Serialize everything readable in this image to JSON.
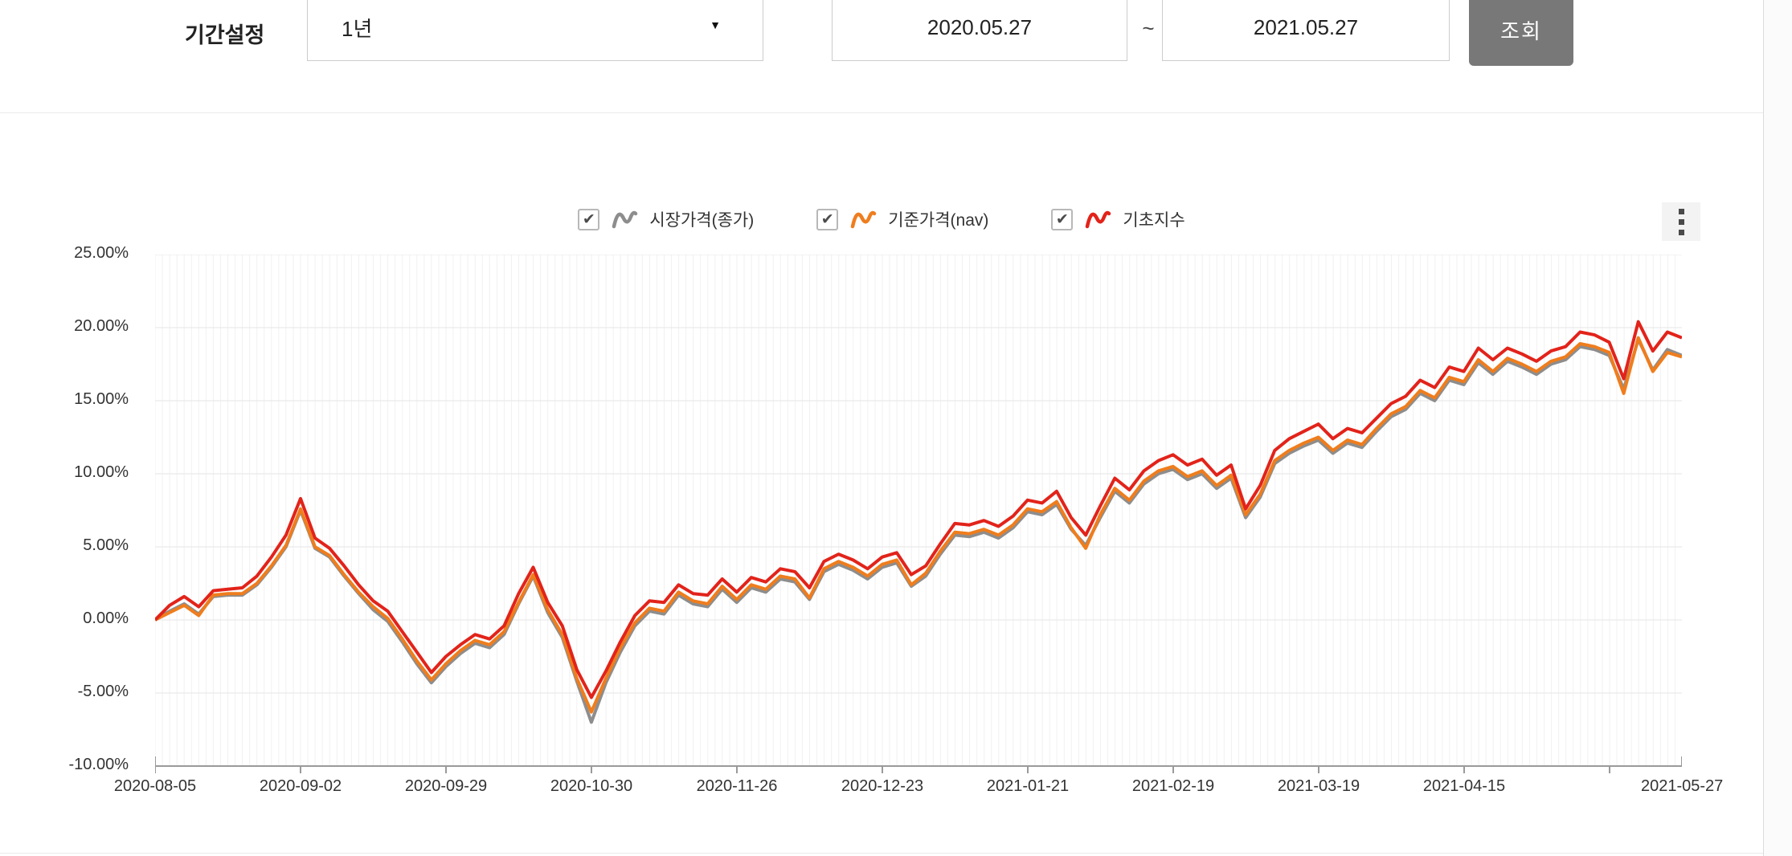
{
  "period_bar": {
    "label": "기간설정",
    "period_value": "1년",
    "dropdown_arrow": "▼",
    "date_from": "2020.05.27",
    "tilde": "~",
    "date_to": "2021.05.27",
    "search_label": "조회"
  },
  "legend": [
    {
      "label": "시장가격(종가)",
      "color": "#8d8d8d",
      "checked": true
    },
    {
      "label": "기준가격(nav)",
      "color": "#ef7d1d",
      "checked": true
    },
    {
      "label": "기초지수",
      "color": "#e2231a",
      "checked": true
    }
  ],
  "check_glyph": "✔",
  "menu_icon": "kebab-menu",
  "chart_data": {
    "type": "line",
    "title": "",
    "xlabel": "",
    "ylabel": "",
    "ylim": [
      -10,
      25
    ],
    "grid": "on",
    "legend_position": "top-center",
    "y_tick_labels": [
      "25.00%",
      "20.00%",
      "15.00%",
      "10.00%",
      "5.00%",
      "0.00%",
      "-5.00%",
      "-10.00%"
    ],
    "x_tick_labels": [
      "2020-08-05",
      "2020-09-02",
      "2020-09-29",
      "2020-10-30",
      "2020-11-26",
      "2020-12-23",
      "2021-01-21",
      "2021-02-19",
      "2021-03-19",
      "2021-04-15",
      "2021-05-27"
    ],
    "x_last_label_clipped": true,
    "series": [
      {
        "name": "시장가격(종가)",
        "color": "#8d8d8d",
        "values": [
          0.0,
          0.6,
          1.1,
          0.4,
          1.6,
          1.7,
          1.7,
          2.4,
          3.6,
          5.0,
          7.5,
          4.9,
          4.3,
          3.0,
          1.8,
          0.7,
          -0.1,
          -1.5,
          -3.0,
          -4.3,
          -3.2,
          -2.3,
          -1.6,
          -1.9,
          -1.0,
          1.1,
          3.0,
          0.5,
          -1.2,
          -4.2,
          -7.0,
          -4.3,
          -2.2,
          -0.4,
          0.6,
          0.4,
          1.7,
          1.1,
          0.9,
          2.1,
          1.2,
          2.2,
          1.9,
          2.8,
          2.6,
          1.4,
          3.3,
          3.8,
          3.4,
          2.8,
          3.6,
          3.9,
          2.3,
          3.0,
          4.5,
          5.8,
          5.7,
          6.0,
          5.6,
          6.3,
          7.4,
          7.2,
          7.9,
          6.2,
          5.1,
          7.0,
          8.8,
          8.0,
          9.3,
          10.0,
          10.3,
          9.6,
          10.0,
          9.0,
          9.7,
          7.0,
          8.4,
          10.7,
          11.4,
          11.9,
          12.3,
          11.4,
          12.1,
          11.8,
          12.9,
          13.9,
          14.4,
          15.5,
          15.0,
          16.4,
          16.1,
          17.6,
          16.8,
          17.7,
          17.3,
          16.8,
          17.5,
          17.8,
          18.7,
          18.5,
          18.1,
          15.8,
          19.2,
          17.1,
          18.5,
          18.1
        ]
      },
      {
        "name": "기준가격(nav)",
        "color": "#ef7d1d",
        "values": [
          0.0,
          0.5,
          1.0,
          0.3,
          1.7,
          1.8,
          1.8,
          2.5,
          3.7,
          5.1,
          7.6,
          5.0,
          4.4,
          3.1,
          1.9,
          0.9,
          0.1,
          -1.3,
          -2.8,
          -4.1,
          -3.0,
          -2.1,
          -1.4,
          -1.7,
          -0.8,
          1.2,
          3.1,
          0.7,
          -1.0,
          -4.0,
          -6.3,
          -4.0,
          -1.9,
          -0.2,
          0.8,
          0.6,
          1.9,
          1.3,
          1.1,
          2.3,
          1.4,
          2.4,
          2.1,
          3.0,
          2.8,
          1.5,
          3.5,
          4.0,
          3.6,
          3.0,
          3.8,
          4.1,
          2.4,
          3.2,
          4.7,
          6.0,
          5.9,
          6.2,
          5.8,
          6.5,
          7.6,
          7.4,
          8.1,
          6.3,
          4.9,
          7.2,
          9.0,
          8.2,
          9.5,
          10.2,
          10.5,
          9.8,
          10.2,
          9.2,
          9.9,
          7.2,
          8.6,
          10.9,
          11.6,
          12.1,
          12.5,
          11.6,
          12.3,
          12.0,
          13.1,
          14.1,
          14.6,
          15.7,
          15.2,
          16.6,
          16.3,
          17.8,
          17.0,
          17.9,
          17.5,
          17.0,
          17.7,
          18.0,
          18.9,
          18.7,
          18.3,
          15.5,
          19.3,
          17.0,
          18.3,
          18.0
        ]
      },
      {
        "name": "기초지수",
        "color": "#e2231a",
        "values": [
          0.0,
          1.0,
          1.6,
          0.9,
          2.0,
          2.1,
          2.2,
          3.0,
          4.3,
          5.8,
          8.3,
          5.6,
          4.9,
          3.7,
          2.4,
          1.3,
          0.6,
          -0.8,
          -2.2,
          -3.6,
          -2.5,
          -1.7,
          -1.0,
          -1.3,
          -0.4,
          1.8,
          3.6,
          1.2,
          -0.4,
          -3.4,
          -5.3,
          -3.5,
          -1.5,
          0.3,
          1.3,
          1.2,
          2.4,
          1.8,
          1.7,
          2.8,
          1.9,
          2.9,
          2.6,
          3.5,
          3.3,
          2.2,
          4.0,
          4.5,
          4.1,
          3.5,
          4.3,
          4.6,
          3.1,
          3.7,
          5.2,
          6.6,
          6.5,
          6.8,
          6.4,
          7.1,
          8.2,
          8.0,
          8.8,
          7.0,
          5.8,
          7.8,
          9.7,
          8.9,
          10.2,
          10.9,
          11.3,
          10.6,
          11.0,
          9.9,
          10.6,
          7.6,
          9.2,
          11.6,
          12.4,
          12.9,
          13.4,
          12.4,
          13.1,
          12.8,
          13.8,
          14.8,
          15.3,
          16.4,
          15.9,
          17.3,
          17.0,
          18.6,
          17.8,
          18.6,
          18.2,
          17.7,
          18.4,
          18.7,
          19.7,
          19.5,
          19.0,
          16.5,
          20.4,
          18.4,
          19.7,
          19.3
        ]
      }
    ]
  },
  "style": {
    "grid_h_color": "#e6e6e6",
    "grid_v_color": "#f1f1f1",
    "axis_color": "#9a9a9a"
  }
}
